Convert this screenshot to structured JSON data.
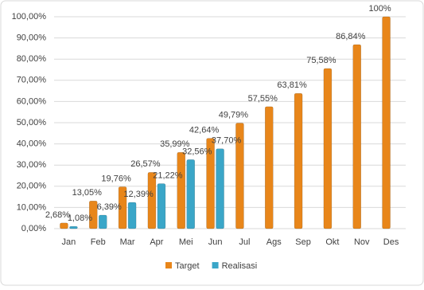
{
  "chart_data": {
    "type": "bar",
    "categories": [
      "Jan",
      "Feb",
      "Mar",
      "Apr",
      "Mei",
      "Jun",
      "Jul",
      "Ags",
      "Sep",
      "Okt",
      "Nov",
      "Des"
    ],
    "series": [
      {
        "name": "Target",
        "color": "#e8861a",
        "values": [
          2.68,
          13.05,
          19.76,
          26.57,
          35.99,
          42.64,
          49.79,
          57.55,
          63.81,
          75.58,
          86.84,
          100
        ],
        "value_labels": [
          "2,68%",
          "13,05%",
          "19,76%",
          "26,57%",
          "35,99%",
          "42,64%",
          "49,79%",
          "57,55%",
          "63,81%",
          "75,58%",
          "86,84%",
          "100%"
        ]
      },
      {
        "name": "Realisasi",
        "color": "#3aa6c8",
        "values": [
          1.08,
          6.39,
          12.39,
          21.22,
          32.56,
          37.7,
          null,
          null,
          null,
          null,
          null,
          null
        ],
        "value_labels": [
          "1,08%",
          "6,39%",
          "12,39%",
          "21,22%",
          "32,56%",
          "37,70%",
          null,
          null,
          null,
          null,
          null,
          null
        ]
      }
    ],
    "ylim": [
      0,
      100
    ],
    "yticks": [
      {
        "value": 0,
        "label": "0,00%"
      },
      {
        "value": 10,
        "label": "10,00%"
      },
      {
        "value": 20,
        "label": "20,00%"
      },
      {
        "value": 30,
        "label": "30,00%"
      },
      {
        "value": 40,
        "label": "40,00%"
      },
      {
        "value": 50,
        "label": "50,00%"
      },
      {
        "value": 60,
        "label": "60,00%"
      },
      {
        "value": 70,
        "label": "70,00%"
      },
      {
        "value": 80,
        "label": "80,00%"
      },
      {
        "value": 90,
        "label": "90,00%"
      },
      {
        "value": 100,
        "label": "100,00%"
      }
    ],
    "grid": true,
    "legend": "bottom"
  }
}
